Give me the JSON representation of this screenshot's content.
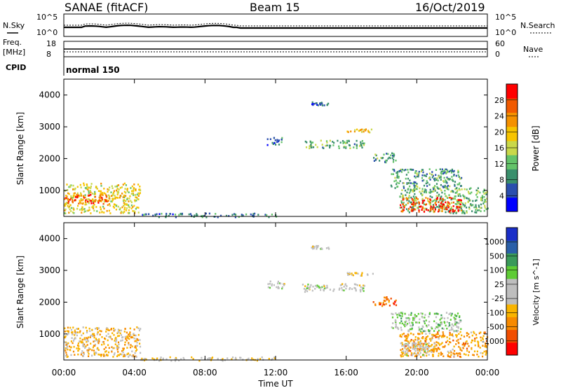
{
  "header": {
    "station": "SANAE (fitACF)",
    "beam": "Beam 15",
    "date": "16/Oct/2019"
  },
  "noise_panel": {
    "left_label": "N.Sky",
    "right_label": "N.Search",
    "left_ticks": [
      "10^5",
      "10^0"
    ],
    "right_ticks": [
      "10^5",
      "10^0"
    ]
  },
  "freq_panel": {
    "left_label_line1": "Freq.",
    "left_label_line2": "[MHz]",
    "right_label": "Nave",
    "left_ticks": [
      "18",
      "8"
    ],
    "right_ticks": [
      "60",
      "0"
    ]
  },
  "cpid_panel": {
    "label": "CPID",
    "value": "normal 150"
  },
  "x_axis": {
    "label": "Time UT",
    "ticks": [
      "00:00",
      "04:00",
      "08:00",
      "12:00",
      "16:00",
      "20:00",
      "00:00"
    ]
  },
  "colors": {
    "power_scale": [
      "#0000ff",
      "#2b4fae",
      "#3a8f6c",
      "#64c36a",
      "#c9d84a",
      "#f7c400",
      "#f59100",
      "#f15a00",
      "#ff0000"
    ],
    "velocity_scale": [
      "#ff0000",
      "#f14d00",
      "#f78a00",
      "#f9b400",
      "#bebebe",
      "#bebebe",
      "#5fcc35",
      "#3a9a5a",
      "#2a5fa8",
      "#1a2ec8"
    ]
  },
  "chart_data": [
    {
      "type": "heatmap",
      "title": "",
      "ylabel": "Slant Range [km]",
      "yticks": [
        "1000",
        "2000",
        "3000",
        "4000"
      ],
      "ylim": [
        180,
        4500
      ],
      "xlim": [
        0,
        24
      ],
      "colorbar_label": "Power [dB]",
      "colorbar_ticks": [
        "4",
        "8",
        "12",
        "16",
        "20",
        "24",
        "28"
      ],
      "clim": [
        0,
        32
      ],
      "regions": [
        {
          "t0": 0.0,
          "t1": 4.3,
          "r0": 300,
          "r1": 1250,
          "value": 18
        },
        {
          "t0": 0.0,
          "t1": 2.5,
          "r0": 600,
          "r1": 900,
          "value": 27
        },
        {
          "t0": 4.3,
          "t1": 12.0,
          "r0": 180,
          "r1": 300,
          "value": 8
        },
        {
          "t0": 11.5,
          "t1": 12.5,
          "r0": 2450,
          "r1": 2700,
          "value": 6
        },
        {
          "t0": 13.5,
          "t1": 17.0,
          "r0": 2350,
          "r1": 2600,
          "value": 12
        },
        {
          "t0": 14.0,
          "t1": 15.0,
          "r0": 3700,
          "r1": 3800,
          "value": 6
        },
        {
          "t0": 16.0,
          "t1": 17.5,
          "r0": 2850,
          "r1": 2950,
          "value": 20
        },
        {
          "t0": 17.5,
          "t1": 18.8,
          "r0": 1900,
          "r1": 2200,
          "value": 10
        },
        {
          "t0": 18.5,
          "t1": 22.5,
          "r0": 1100,
          "r1": 1700,
          "value": 10
        },
        {
          "t0": 19.0,
          "t1": 24.0,
          "r0": 300,
          "r1": 1100,
          "value": 12
        },
        {
          "t0": 19.0,
          "t1": 22.5,
          "r0": 350,
          "r1": 800,
          "value": 28
        }
      ]
    },
    {
      "type": "heatmap",
      "title": "",
      "ylabel": "Slant Range [km]",
      "yticks": [
        "1000",
        "2000",
        "3000",
        "4000"
      ],
      "ylim": [
        180,
        4500
      ],
      "xlim": [
        0,
        24
      ],
      "colorbar_label": "Velocity [m s^-1]",
      "colorbar_ticks": [
        "1000",
        "500",
        "100",
        "25",
        "-25",
        "-100",
        "-500",
        "-1000"
      ],
      "clim": [
        -1000,
        1000
      ],
      "regions": [
        {
          "t0": 0.0,
          "t1": 4.3,
          "r0": 300,
          "r1": 1250,
          "value": -300
        },
        {
          "t0": 4.3,
          "t1": 12.0,
          "r0": 180,
          "r1": 300,
          "value": -100
        },
        {
          "t0": 11.5,
          "t1": 12.5,
          "r0": 2450,
          "r1": 2700,
          "value": 0
        },
        {
          "t0": 13.5,
          "t1": 17.0,
          "r0": 2350,
          "r1": 2600,
          "value": 0
        },
        {
          "t0": 14.0,
          "t1": 15.0,
          "r0": 3700,
          "r1": 3800,
          "value": 0
        },
        {
          "t0": 16.0,
          "t1": 17.5,
          "r0": 2850,
          "r1": 2950,
          "value": -100
        },
        {
          "t0": 17.5,
          "t1": 18.8,
          "r0": 1900,
          "r1": 2200,
          "value": -600
        },
        {
          "t0": 18.5,
          "t1": 22.5,
          "r0": 1100,
          "r1": 1700,
          "value": 200
        },
        {
          "t0": 19.0,
          "t1": 24.0,
          "r0": 300,
          "r1": 1100,
          "value": -400
        },
        {
          "t0": 19.0,
          "t1": 21.0,
          "r0": 350,
          "r1": 750,
          "value": 0
        }
      ]
    }
  ]
}
